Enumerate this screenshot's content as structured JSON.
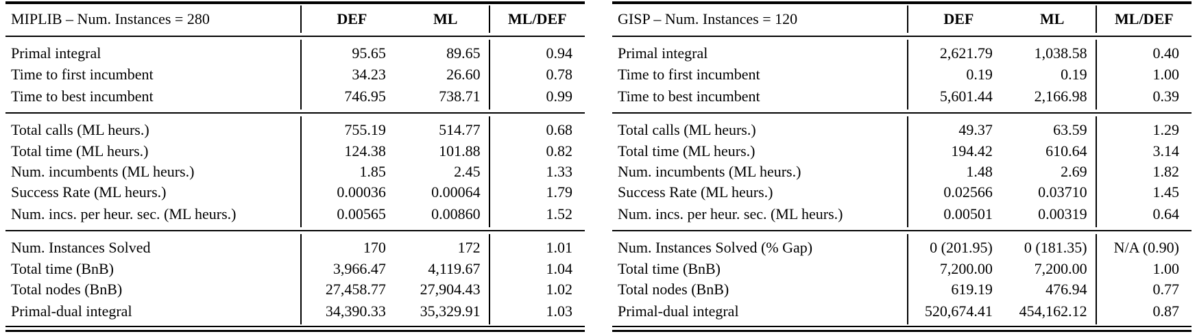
{
  "page": {
    "background": "#ffffff",
    "text_color": "#000000",
    "rule_color": "#000000"
  },
  "tables": [
    {
      "title": "MIPLIB – Num. Instances = 280",
      "columns": {
        "def": "DEF",
        "ml": "ML",
        "ratio": "ML/DEF"
      },
      "groups": [
        {
          "rows": [
            {
              "label": "Primal integral",
              "def": "95.65",
              "ml": "89.65",
              "ratio": "0.94"
            },
            {
              "label": "Time to first incumbent",
              "def": "34.23",
              "ml": "26.60",
              "ratio": "0.78"
            },
            {
              "label": "Time to best incumbent",
              "def": "746.95",
              "ml": "738.71",
              "ratio": "0.99"
            }
          ]
        },
        {
          "rows": [
            {
              "label": "Total calls (ML heurs.)",
              "def": "755.19",
              "ml": "514.77",
              "ratio": "0.68"
            },
            {
              "label": "Total time (ML heurs.)",
              "def": "124.38",
              "ml": "101.88",
              "ratio": "0.82"
            },
            {
              "label": "Num. incumbents (ML heurs.)",
              "def": "1.85",
              "ml": "2.45",
              "ratio": "1.33"
            },
            {
              "label": "Success Rate (ML heurs.)",
              "def": "0.00036",
              "ml": "0.00064",
              "ratio": "1.79"
            },
            {
              "label": "Num. incs. per heur. sec. (ML heurs.)",
              "def": "0.00565",
              "ml": "0.00860",
              "ratio": "1.52"
            }
          ]
        },
        {
          "rows": [
            {
              "label": "Num. Instances Solved",
              "def": "170",
              "ml": "172",
              "ratio": "1.01"
            },
            {
              "label": "Total time (BnB)",
              "def": "3,966.47",
              "ml": "4,119.67",
              "ratio": "1.04"
            },
            {
              "label": "Total nodes (BnB)",
              "def": "27,458.77",
              "ml": "27,904.43",
              "ratio": "1.02"
            },
            {
              "label": "Primal-dual integral",
              "def": "34,390.33",
              "ml": "35,329.91",
              "ratio": "1.03"
            }
          ]
        }
      ]
    },
    {
      "title": "GISP – Num. Instances = 120",
      "columns": {
        "def": "DEF",
        "ml": "ML",
        "ratio": "ML/DEF"
      },
      "groups": [
        {
          "rows": [
            {
              "label": "Primal integral",
              "def": "2,621.79",
              "ml": "1,038.58",
              "ratio": "0.40"
            },
            {
              "label": "Time to first incumbent",
              "def": "0.19",
              "ml": "0.19",
              "ratio": "1.00"
            },
            {
              "label": "Time to best incumbent",
              "def": "5,601.44",
              "ml": "2,166.98",
              "ratio": "0.39"
            }
          ]
        },
        {
          "rows": [
            {
              "label": "Total calls (ML heurs.)",
              "def": "49.37",
              "ml": "63.59",
              "ratio": "1.29"
            },
            {
              "label": "Total time (ML heurs.)",
              "def": "194.42",
              "ml": "610.64",
              "ratio": "3.14"
            },
            {
              "label": "Num. incumbents (ML heurs.)",
              "def": "1.48",
              "ml": "2.69",
              "ratio": "1.82"
            },
            {
              "label": "Success Rate (ML heurs.)",
              "def": "0.02566",
              "ml": "0.03710",
              "ratio": "1.45"
            },
            {
              "label": "Num. incs. per heur. sec. (ML heurs.)",
              "def": "0.00501",
              "ml": "0.00319",
              "ratio": "0.64"
            }
          ]
        },
        {
          "rows": [
            {
              "label": "Num. Instances Solved (% Gap)",
              "def": "0 (201.95)",
              "ml": "0 (181.35)",
              "ratio": "N/A (0.90)"
            },
            {
              "label": "Total time (BnB)",
              "def": "7,200.00",
              "ml": "7,200.00",
              "ratio": "1.00"
            },
            {
              "label": "Total nodes (BnB)",
              "def": "619.19",
              "ml": "476.94",
              "ratio": "0.77"
            },
            {
              "label": "Primal-dual integral",
              "def": "520,674.41",
              "ml": "454,162.12",
              "ratio": "0.87"
            }
          ]
        }
      ]
    }
  ]
}
